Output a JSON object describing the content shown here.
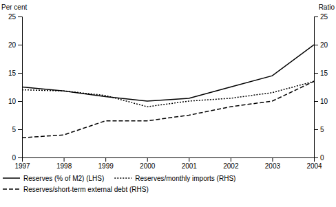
{
  "chart_data": {
    "type": "line",
    "x": [
      1997,
      1998,
      1999,
      2000,
      2001,
      2002,
      2003,
      2004
    ],
    "xlim": [
      1997,
      2004
    ],
    "xticks": [
      1997,
      1998,
      1999,
      2000,
      2001,
      2002,
      2003,
      2004
    ],
    "ylim": [
      0,
      25
    ],
    "yticks": [
      0,
      5,
      10,
      15,
      20,
      25
    ],
    "y2lim": [
      0,
      25
    ],
    "y2ticks": [
      0,
      5,
      10,
      15,
      20,
      25
    ],
    "ylabel": "Per cent",
    "y2label": "Ratio",
    "grid": false,
    "legend": "bottom",
    "color": "#000000",
    "series": [
      {
        "name": "Reserves (% of M2) (LHS)",
        "line_style": "solid",
        "values": [
          12.5,
          11.8,
          10.8,
          10.0,
          10.5,
          12.5,
          14.5,
          20.0
        ]
      },
      {
        "name": "Reserves/monthly imports (RHS)",
        "line_style": "dotted",
        "axis": "y2",
        "values": [
          12.0,
          11.8,
          11.0,
          9.0,
          10.0,
          10.5,
          11.5,
          13.5
        ]
      },
      {
        "name": "Reserves/short-term external debt (RHS)",
        "line_style": "dashed",
        "axis": "y2",
        "values": [
          3.5,
          4.0,
          6.5,
          6.5,
          7.5,
          9.0,
          10.0,
          13.5
        ]
      }
    ]
  }
}
